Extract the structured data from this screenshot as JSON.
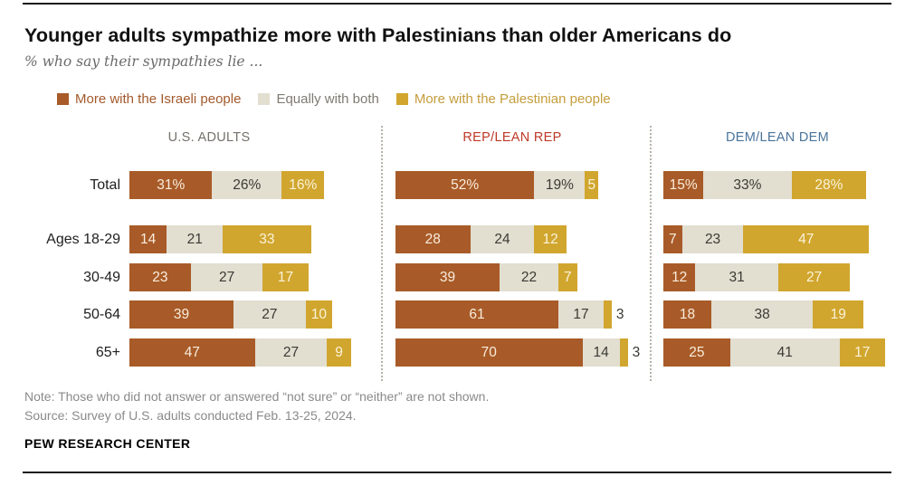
{
  "header": {
    "title": "Younger adults sympathize more with Palestinians than older Americans do",
    "subtitle": "% who say their sympathies lie ..."
  },
  "legend": [
    {
      "label": "More with the Israeli people",
      "swatch_color": "#a85b28",
      "text_color": "#a3592b"
    },
    {
      "label": "Equally with both",
      "swatch_color": "#e2ded0",
      "text_color": "#7f7b72"
    },
    {
      "label": "More with the Palestinian people",
      "swatch_color": "#d1a62f",
      "text_color": "#c49d3c"
    }
  ],
  "chart_data": {
    "type": "bar",
    "orientation": "horizontal",
    "stacked": true,
    "unit": "%",
    "series_names": [
      "More with the Israeli people",
      "Equally with both",
      "More with the Palestinian people"
    ],
    "series_colors": [
      "#a85b28",
      "#e2ded0",
      "#d1a62f"
    ],
    "series_label_colors": [
      "#f9ecdc",
      "#3b3a35",
      "#faf3da"
    ],
    "categories": [
      "Total",
      "Ages 18-29",
      "30-49",
      "50-64",
      "65+"
    ],
    "panels": [
      {
        "header": "U.S. ADULTS",
        "header_color": "#75716b",
        "rows": [
          {
            "category": "Total",
            "values": [
              31,
              26,
              16
            ],
            "labels": [
              "31%",
              "26%",
              "16%"
            ]
          },
          {
            "category": "Ages 18-29",
            "values": [
              14,
              21,
              33
            ],
            "labels": [
              "14",
              "21",
              "33"
            ]
          },
          {
            "category": "30-49",
            "values": [
              23,
              27,
              17
            ],
            "labels": [
              "23",
              "27",
              "17"
            ]
          },
          {
            "category": "50-64",
            "values": [
              39,
              27,
              10
            ],
            "labels": [
              "39",
              "27",
              "10"
            ]
          },
          {
            "category": "65+",
            "values": [
              47,
              27,
              9
            ],
            "labels": [
              "47",
              "27",
              "9"
            ]
          }
        ]
      },
      {
        "header": "REP/LEAN REP",
        "header_color": "#bf3927",
        "rows": [
          {
            "category": "Total",
            "values": [
              52,
              19,
              5
            ],
            "labels": [
              "52%",
              "19%",
              "5"
            ]
          },
          {
            "category": "Ages 18-29",
            "values": [
              28,
              24,
              12
            ],
            "labels": [
              "28",
              "24",
              "12"
            ]
          },
          {
            "category": "30-49",
            "values": [
              39,
              22,
              7
            ],
            "labels": [
              "39",
              "22",
              "7"
            ]
          },
          {
            "category": "50-64",
            "values": [
              61,
              17,
              3
            ],
            "labels": [
              "61",
              "17",
              "3"
            ]
          },
          {
            "category": "65+",
            "values": [
              70,
              14,
              3
            ],
            "labels": [
              "70",
              "14",
              "3"
            ]
          }
        ]
      },
      {
        "header": "DEM/LEAN DEM",
        "header_color": "#4a749b",
        "rows": [
          {
            "category": "Total",
            "values": [
              15,
              33,
              28
            ],
            "labels": [
              "15%",
              "33%",
              "28%"
            ]
          },
          {
            "category": "Ages 18-29",
            "values": [
              7,
              23,
              47
            ],
            "labels": [
              "7",
              "23",
              "47"
            ]
          },
          {
            "category": "30-49",
            "values": [
              12,
              31,
              27
            ],
            "labels": [
              "12",
              "31",
              "27"
            ]
          },
          {
            "category": "50-64",
            "values": [
              18,
              38,
              19
            ],
            "labels": [
              "18",
              "38",
              "19"
            ]
          },
          {
            "category": "65+",
            "values": [
              25,
              41,
              17
            ],
            "labels": [
              "25",
              "41",
              "17"
            ]
          }
        ]
      }
    ]
  },
  "footer": {
    "note": "Note: Those who did not answer or answered “not sure” or “neither” are not shown.",
    "source": "Source: Survey of U.S. adults conducted Feb. 13-25, 2024.",
    "brand": "PEW RESEARCH CENTER"
  }
}
